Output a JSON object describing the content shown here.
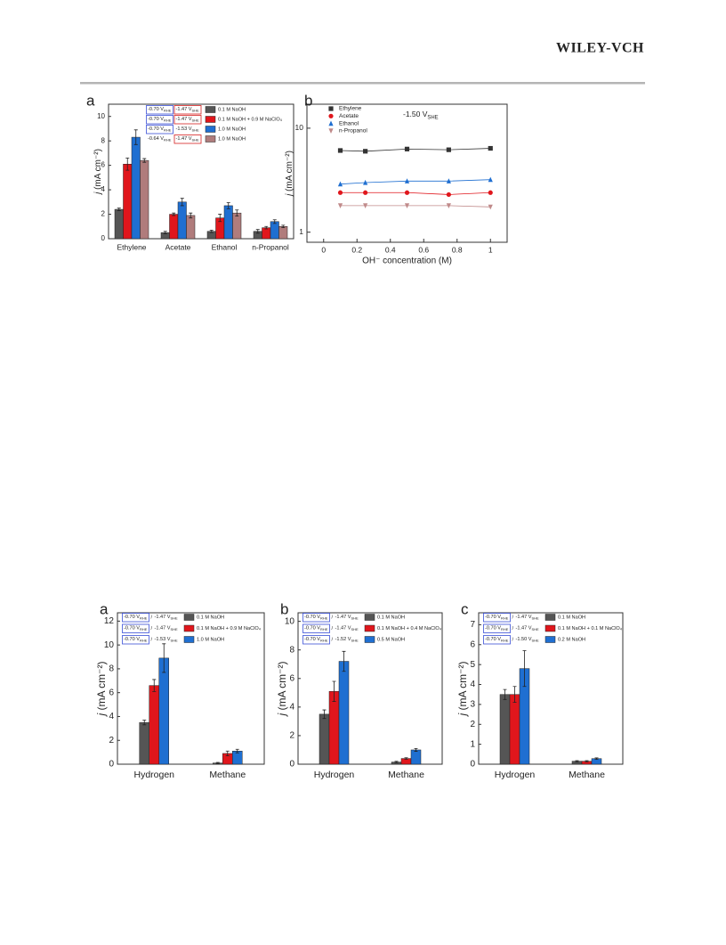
{
  "header": {
    "publisher": "WILEY-VCH"
  },
  "chart_data": [
    {
      "type": "bar",
      "panel_label": "a",
      "ylabel_symbol": "j",
      "ylabel": "(mA cm⁻²)",
      "categories": [
        "Ethylene",
        "Acetate",
        "Ethanol",
        "n-Propanol"
      ],
      "ylim": [
        0,
        11
      ],
      "yticks": [
        0,
        2,
        4,
        6,
        8,
        10
      ],
      "series": [
        {
          "name": "0.1 M NaOH",
          "color": "#555555",
          "values": [
            2.4,
            0.5,
            0.6,
            0.6
          ],
          "errors": [
            0.1,
            0.1,
            0.1,
            0.15
          ],
          "potentials": [
            {
              "value": "-0.70 V",
              "sub": "RHE"
            },
            {
              "value": "-1.47 V",
              "sub": "SHE"
            }
          ],
          "potential_boxes": [
            "#3a4fd6",
            "#d62020"
          ]
        },
        {
          "name": "0.1 M NaOH + 0.9 M NaClO₄",
          "color": "#e0161c",
          "values": [
            6.1,
            2.0,
            1.7,
            0.9
          ],
          "errors": [
            0.5,
            0.1,
            0.3,
            0.1
          ],
          "potentials": [
            {
              "value": "-0.70 V",
              "sub": "RHE"
            },
            {
              "value": "-1.47 V",
              "sub": "SHE"
            }
          ],
          "potential_boxes": [
            "#3a4fd6",
            "#d62020"
          ]
        },
        {
          "name": "1.0 M NaOH",
          "color": "#1f6fd1",
          "values": [
            8.3,
            3.0,
            2.7,
            1.4
          ],
          "errors": [
            0.6,
            0.3,
            0.25,
            0.15
          ],
          "potentials": [
            {
              "value": "-0.70 V",
              "sub": "RHE"
            },
            {
              "value": "-1.53 V",
              "sub": "SHE"
            }
          ],
          "potential_boxes": [
            "#3a4fd6",
            null
          ]
        },
        {
          "name": "1.0 M NaOH",
          "color": "#b07c7c",
          "values": [
            6.4,
            1.9,
            2.1,
            1.0
          ],
          "errors": [
            0.15,
            0.2,
            0.25,
            0.1
          ],
          "potentials": [
            {
              "value": "-0.64 V",
              "sub": "RHE"
            },
            {
              "value": "-1.47 V",
              "sub": "SHE"
            }
          ],
          "potential_boxes": [
            null,
            "#d62020"
          ]
        }
      ]
    },
    {
      "type": "line",
      "panel_label": "b",
      "ylabel_symbol": "j",
      "ylabel": "(mA cm⁻²)",
      "xlabel": "OH⁻ concentration (M)",
      "annotation": {
        "value": "-1.50 V",
        "sub": "SHE"
      },
      "log_y": true,
      "xlim": [
        -0.1,
        1.1
      ],
      "xticks": [
        0,
        0.2,
        0.4,
        0.6,
        0.8,
        1
      ],
      "ylim": [
        0.8,
        17
      ],
      "yticks": [
        1,
        10
      ],
      "x": [
        0.1,
        0.25,
        0.5,
        0.75,
        1
      ],
      "series": [
        {
          "name": "Ethylene",
          "color": "#333333",
          "marker": "square",
          "values": [
            6.1,
            6.0,
            6.3,
            6.2,
            6.4
          ]
        },
        {
          "name": "Acetate",
          "color": "#e0161c",
          "marker": "circle",
          "values": [
            2.4,
            2.4,
            2.4,
            2.3,
            2.4
          ]
        },
        {
          "name": "Ethanol",
          "color": "#1f6fd1",
          "marker": "triangle-up",
          "values": [
            2.9,
            3.0,
            3.1,
            3.1,
            3.2
          ]
        },
        {
          "name": "n-Propanol",
          "color": "#c08a8a",
          "marker": "triangle-down",
          "values": [
            1.8,
            1.8,
            1.8,
            1.8,
            1.75
          ]
        }
      ]
    },
    {
      "type": "bar",
      "panel_label": "a",
      "ylabel_symbol": "j",
      "ylabel": "(mA cm⁻²)",
      "potential_separator": "/",
      "categories": [
        "Hydrogen",
        "Methane"
      ],
      "ylim": [
        0,
        12.7
      ],
      "yticks": [
        0,
        2,
        4,
        6,
        8,
        10,
        12
      ],
      "series": [
        {
          "name": "0.1 M NaOH",
          "color": "#555555",
          "values": [
            3.5,
            0.1
          ],
          "errors": [
            0.2,
            0.05
          ],
          "potentials": [
            {
              "value": "-0.70 V",
              "sub": "RHE"
            },
            {
              "value": "-1.47 V",
              "sub": "SHE"
            }
          ],
          "potential_boxes": [
            "#3a4fd6",
            null
          ]
        },
        {
          "name": "0.1 M NaOH + 0.9 M NaClO₄",
          "color": "#e0161c",
          "values": [
            6.6,
            0.9
          ],
          "errors": [
            0.5,
            0.2
          ],
          "potentials": [
            {
              "value": "-0.70 V",
              "sub": "RHE"
            },
            {
              "value": "-1.47 V",
              "sub": "SHE"
            }
          ],
          "potential_boxes": [
            "#3a4fd6",
            null
          ]
        },
        {
          "name": "1.0 M NaOH",
          "color": "#1f6fd1",
          "values": [
            8.9,
            1.1
          ],
          "errors": [
            1.2,
            0.15
          ],
          "potentials": [
            {
              "value": "-0.70 V",
              "sub": "RHE"
            },
            {
              "value": "-1.53 V",
              "sub": "SHE"
            }
          ],
          "potential_boxes": [
            "#3a4fd6",
            null
          ]
        }
      ]
    },
    {
      "type": "bar",
      "panel_label": "b",
      "ylabel_symbol": "j",
      "ylabel": "(mA cm⁻²)",
      "potential_separator": "/",
      "categories": [
        "Hydrogen",
        "Methane"
      ],
      "ylim": [
        0,
        10.6
      ],
      "yticks": [
        0,
        2,
        4,
        6,
        8,
        10
      ],
      "series": [
        {
          "name": "0.1 M NaOH",
          "color": "#555555",
          "values": [
            3.5,
            0.15
          ],
          "errors": [
            0.3,
            0.05
          ],
          "potentials": [
            {
              "value": "-0.70 V",
              "sub": "RHE"
            },
            {
              "value": "-1.47 V",
              "sub": "SHE"
            }
          ],
          "potential_boxes": [
            "#3a4fd6",
            null
          ]
        },
        {
          "name": "0.1 M NaOH + 0.4 M NaClO₄",
          "color": "#e0161c",
          "values": [
            5.1,
            0.4
          ],
          "errors": [
            0.7,
            0.05
          ],
          "potentials": [
            {
              "value": "-0.70 V",
              "sub": "RHE"
            },
            {
              "value": "-1.47 V",
              "sub": "SHE"
            }
          ],
          "potential_boxes": [
            "#3a4fd6",
            null
          ]
        },
        {
          "name": "0.5 M NaOH",
          "color": "#1f6fd1",
          "values": [
            7.2,
            1.0
          ],
          "errors": [
            0.7,
            0.1
          ],
          "potentials": [
            {
              "value": "-0.70 V",
              "sub": "RHE"
            },
            {
              "value": "-1.52 V",
              "sub": "SHE"
            }
          ],
          "potential_boxes": [
            "#3a4fd6",
            null
          ]
        }
      ]
    },
    {
      "type": "bar",
      "panel_label": "c",
      "ylabel_symbol": "j",
      "ylabel": "(mA cm⁻²)",
      "potential_separator": "/",
      "categories": [
        "Hydrogen",
        "Methane"
      ],
      "ylim": [
        0,
        7.6
      ],
      "yticks": [
        0,
        1,
        2,
        3,
        4,
        5,
        6,
        7
      ],
      "series": [
        {
          "name": "0.1 M NaOH",
          "color": "#555555",
          "values": [
            3.5,
            0.15
          ],
          "errors": [
            0.25,
            0.03
          ],
          "potentials": [
            {
              "value": "-0.70 V",
              "sub": "RHE"
            },
            {
              "value": "-1.47 V",
              "sub": "SHE"
            }
          ],
          "potential_boxes": [
            "#3a4fd6",
            null
          ]
        },
        {
          "name": "0.1 M NaOH + 0.1 M NaClO₄",
          "color": "#e0161c",
          "values": [
            3.5,
            0.15
          ],
          "errors": [
            0.4,
            0.03
          ],
          "potentials": [
            {
              "value": "-0.70 V",
              "sub": "RHE"
            },
            {
              "value": "-1.47 V",
              "sub": "SHE"
            }
          ],
          "potential_boxes": [
            "#3a4fd6",
            null
          ]
        },
        {
          "name": "0.2 M NaOH",
          "color": "#1f6fd1",
          "values": [
            4.8,
            0.28
          ],
          "errors": [
            0.9,
            0.04
          ],
          "potentials": [
            {
              "value": "-0.70 V",
              "sub": "RHE"
            },
            {
              "value": "-1.50 V",
              "sub": "SHE"
            }
          ],
          "potential_boxes": [
            "#3a4fd6",
            null
          ]
        }
      ]
    }
  ]
}
